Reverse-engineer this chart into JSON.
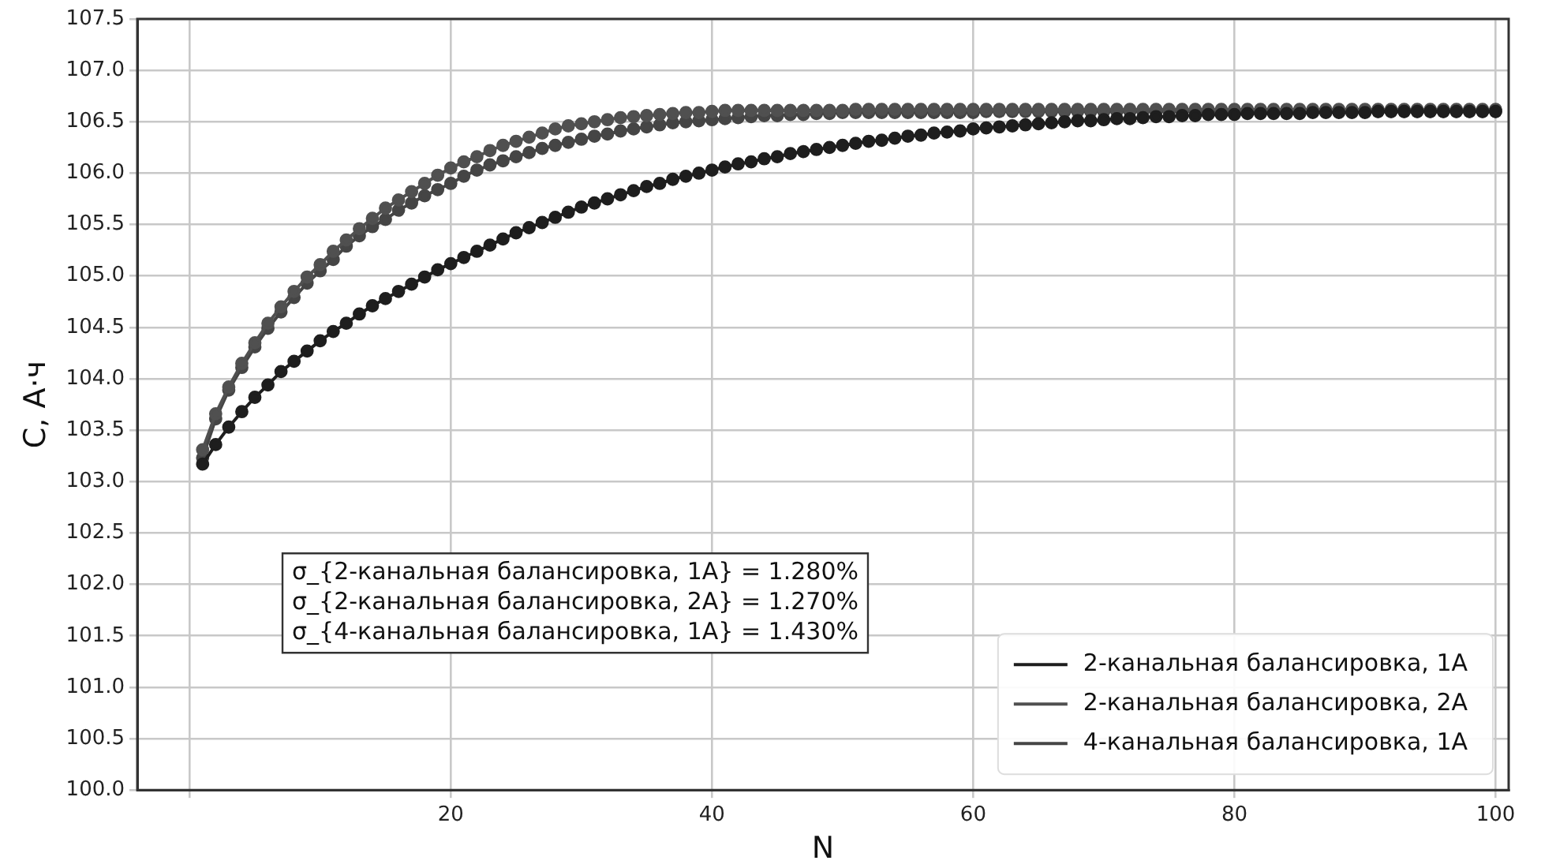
{
  "chart_data": {
    "type": "line",
    "xlabel": "N",
    "ylabel": "C, А·ч",
    "x": [
      1,
      2,
      3,
      4,
      5,
      6,
      7,
      8,
      9,
      10,
      11,
      12,
      13,
      14,
      15,
      16,
      17,
      18,
      19,
      20,
      21,
      22,
      23,
      24,
      25,
      26,
      27,
      28,
      29,
      30,
      31,
      32,
      33,
      34,
      35,
      36,
      37,
      38,
      39,
      40,
      41,
      42,
      43,
      44,
      45,
      46,
      47,
      48,
      49,
      50,
      51,
      52,
      53,
      54,
      55,
      56,
      57,
      58,
      59,
      60,
      61,
      62,
      63,
      64,
      65,
      66,
      67,
      68,
      69,
      70,
      71,
      72,
      73,
      74,
      75,
      76,
      77,
      78,
      79,
      80,
      81,
      82,
      83,
      84,
      85,
      86,
      87,
      88,
      89,
      90,
      91,
      92,
      93,
      94,
      95,
      96,
      97,
      98,
      99,
      100
    ],
    "series": [
      {
        "name": "2-канальная балансировка, 1А",
        "color": "#1e1e1e",
        "values": [
          103.17,
          103.36,
          103.53,
          103.68,
          103.82,
          103.94,
          104.07,
          104.17,
          104.27,
          104.37,
          104.46,
          104.54,
          104.63,
          104.71,
          104.78,
          104.85,
          104.92,
          104.99,
          105.06,
          105.12,
          105.18,
          105.24,
          105.3,
          105.36,
          105.42,
          105.47,
          105.52,
          105.57,
          105.62,
          105.67,
          105.71,
          105.75,
          105.79,
          105.83,
          105.87,
          105.9,
          105.94,
          105.97,
          106.0,
          106.03,
          106.06,
          106.09,
          106.11,
          106.14,
          106.16,
          106.19,
          106.21,
          106.23,
          106.25,
          106.27,
          106.29,
          106.31,
          106.32,
          106.34,
          106.36,
          106.37,
          106.39,
          106.4,
          106.41,
          106.43,
          106.44,
          106.45,
          106.46,
          106.47,
          106.48,
          106.49,
          106.5,
          106.51,
          106.51,
          106.52,
          106.53,
          106.53,
          106.54,
          106.55,
          106.55,
          106.56,
          106.56,
          106.57,
          106.57,
          106.57,
          106.58,
          106.58,
          106.58,
          106.58,
          106.58,
          106.59,
          106.59,
          106.59,
          106.59,
          106.59,
          106.6,
          106.6,
          106.6,
          106.6,
          106.6,
          106.6,
          106.6,
          106.6,
          106.6,
          106.6
        ]
      },
      {
        "name": "2-канальная балансировка, 2А",
        "color": "#505050",
        "values": [
          103.31,
          103.66,
          103.92,
          104.15,
          104.35,
          104.54,
          104.7,
          104.85,
          104.99,
          105.11,
          105.24,
          105.35,
          105.46,
          105.56,
          105.66,
          105.74,
          105.82,
          105.9,
          105.98,
          106.05,
          106.11,
          106.16,
          106.22,
          106.27,
          106.31,
          106.35,
          106.39,
          106.43,
          106.46,
          106.48,
          106.5,
          106.52,
          106.54,
          106.55,
          106.56,
          106.57,
          106.58,
          106.59,
          106.59,
          106.6,
          106.61,
          106.61,
          106.61,
          106.61,
          106.61,
          106.61,
          106.61,
          106.61,
          106.61,
          106.61,
          106.62,
          106.62,
          106.62,
          106.62,
          106.62,
          106.62,
          106.62,
          106.62,
          106.62,
          106.62,
          106.62,
          106.62,
          106.62,
          106.62,
          106.62,
          106.62,
          106.62,
          106.62,
          106.62,
          106.62,
          106.62,
          106.62,
          106.62,
          106.62,
          106.62,
          106.62,
          106.62,
          106.62,
          106.62,
          106.62,
          106.62,
          106.62,
          106.62,
          106.62,
          106.62,
          106.62,
          106.62,
          106.62,
          106.62,
          106.62,
          106.62,
          106.62,
          106.62,
          106.62,
          106.62,
          106.62,
          106.62,
          106.62,
          106.62,
          106.62
        ]
      },
      {
        "name": "4-канальная балансировка, 1А",
        "color": "#454545",
        "values": [
          103.23,
          103.61,
          103.89,
          104.11,
          104.31,
          104.49,
          104.65,
          104.79,
          104.93,
          105.05,
          105.16,
          105.29,
          105.39,
          105.48,
          105.55,
          105.64,
          105.71,
          105.78,
          105.84,
          105.9,
          105.97,
          106.03,
          106.08,
          106.12,
          106.16,
          106.2,
          106.24,
          106.27,
          106.3,
          106.33,
          106.36,
          106.38,
          106.41,
          106.43,
          106.45,
          106.47,
          106.49,
          106.5,
          106.51,
          106.52,
          106.53,
          106.54,
          106.55,
          106.56,
          106.56,
          106.57,
          106.57,
          106.58,
          106.58,
          106.59,
          106.59,
          106.59,
          106.59,
          106.59,
          106.59,
          106.59,
          106.59,
          106.59,
          106.59,
          106.59,
          106.6,
          106.6,
          106.6,
          106.6,
          106.6,
          106.6,
          106.6,
          106.6,
          106.6,
          106.6,
          106.6,
          106.6,
          106.6,
          106.6,
          106.6,
          106.6,
          106.6,
          106.6,
          106.6,
          106.6,
          106.6,
          106.6,
          106.6,
          106.6,
          106.6,
          106.6,
          106.6,
          106.6,
          106.6,
          106.6,
          106.6,
          106.6,
          106.6,
          106.6,
          106.6,
          106.6,
          106.6,
          106.6,
          106.6,
          106.6
        ]
      }
    ],
    "xlim": [
      -4,
      101
    ],
    "xticks": [
      {
        "value": 0,
        "label": null
      },
      20,
      40,
      60,
      80,
      100
    ],
    "ylim": [
      100,
      107.5
    ],
    "yticks": [
      {
        "value": 100,
        "label": "100.0"
      },
      {
        "value": 100.5,
        "label": "100.5"
      },
      {
        "value": 101,
        "label": "101.0"
      },
      {
        "value": 101.5,
        "label": "101.5"
      },
      {
        "value": 102,
        "label": "102.0"
      },
      {
        "value": 102.5,
        "label": "102.5"
      },
      {
        "value": 103,
        "label": "103.0"
      },
      {
        "value": 103.5,
        "label": "103.5"
      },
      {
        "value": 104,
        "label": "104.0"
      },
      {
        "value": 104.5,
        "label": "104.5"
      },
      {
        "value": 105,
        "label": "105.0"
      },
      {
        "value": 105.5,
        "label": "105.5"
      },
      {
        "value": 106,
        "label": "106.0"
      },
      {
        "value": 106.5,
        "label": "106.5"
      },
      {
        "value": 107,
        "label": "107.0"
      },
      {
        "value": 107.5,
        "label": "107.5"
      }
    ],
    "grid": true,
    "legend": "bottom right",
    "marker": "circle",
    "line_style": "solid",
    "annotations": [
      "σ_{2-канальная балансировка, 1А} = 1.280%",
      "σ_{2-канальная балансировка, 2А} = 1.270%",
      "σ_{4-канальная балансировка, 1А} = 1.430%"
    ]
  }
}
